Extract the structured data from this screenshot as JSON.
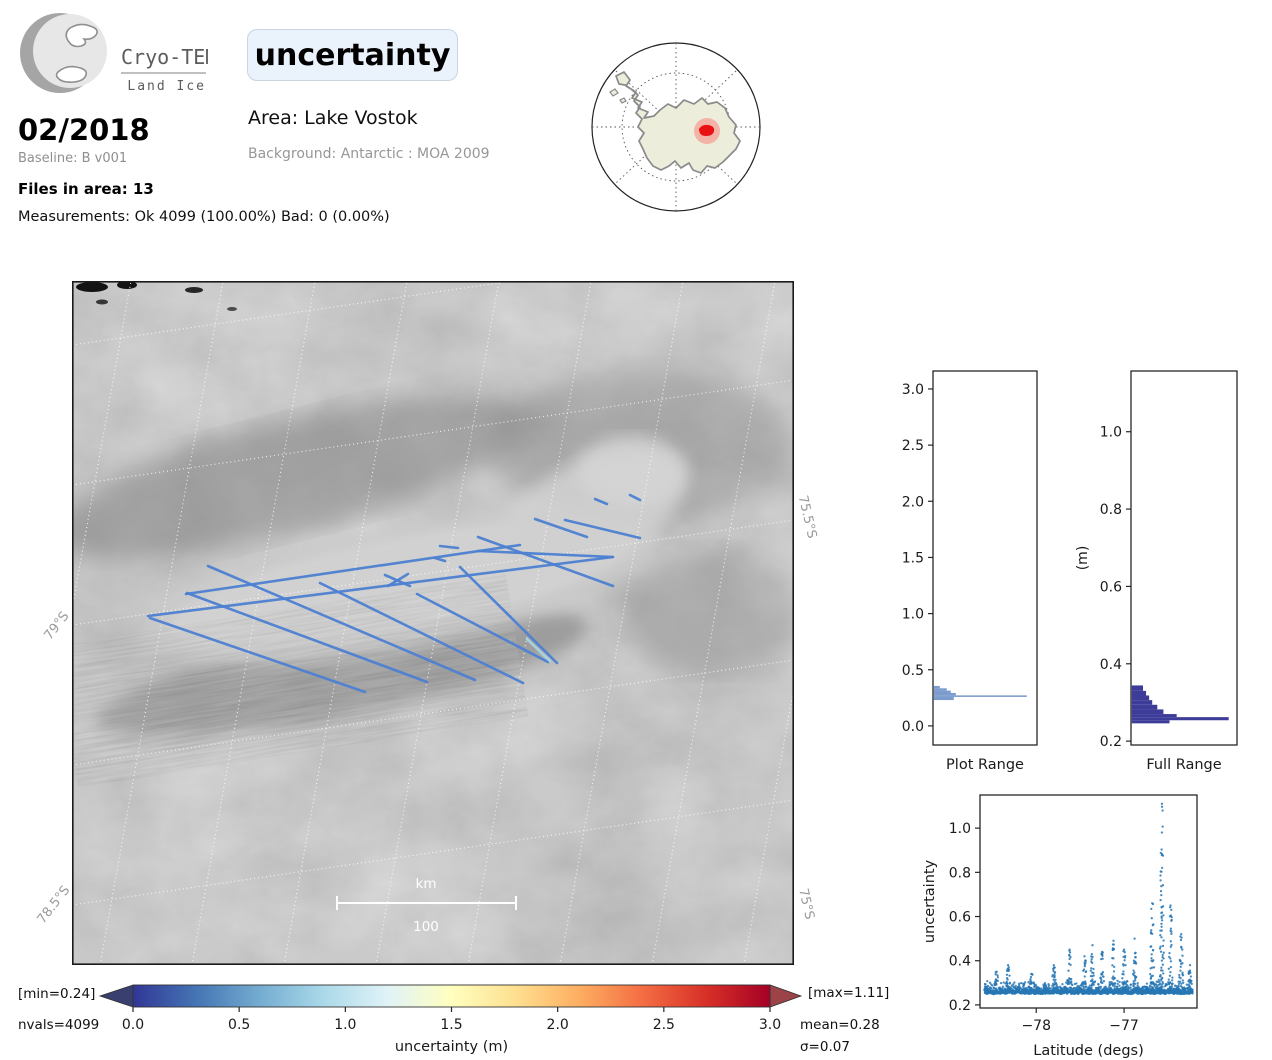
{
  "header": {
    "logo": {
      "line1": "Cryo-TEMPO",
      "line2": "Land Ice"
    },
    "title": "uncertainty",
    "date": "02/2018",
    "baseline": "Baseline: B v001",
    "files": "Files in area: 13",
    "measurements": "Measurements: Ok 4099 (100.00%) Bad: 0 (0.00%)",
    "area": "Area: Lake Vostok",
    "background": "Background: Antarctic : MOA 2009"
  },
  "map": {
    "labels": [
      "79°S",
      "78.5°S",
      "75.5°S",
      "75°S"
    ],
    "scalebar": {
      "unit": "km",
      "value": "100"
    },
    "track_color": "#4d80d2",
    "tracks": [
      [
        78,
        337,
        293,
        411
      ],
      [
        115,
        312,
        355,
        401
      ],
      [
        136,
        285,
        403,
        399
      ],
      [
        248,
        302,
        451,
        402
      ],
      [
        345,
        313,
        476,
        381
      ],
      [
        388,
        286,
        485,
        382
      ],
      [
        406,
        256,
        541,
        305
      ],
      [
        406,
        270,
        541,
        276
      ],
      [
        76,
        335,
        541,
        276
      ],
      [
        114,
        313,
        448,
        264
      ],
      [
        463,
        238,
        515,
        256
      ],
      [
        523,
        218,
        535,
        223
      ],
      [
        368,
        265,
        386,
        267
      ],
      [
        363,
        277,
        373,
        280
      ],
      [
        313,
        294,
        338,
        305
      ],
      [
        316,
        305,
        336,
        293
      ],
      [
        493,
        239,
        568,
        257
      ],
      [
        558,
        214,
        568,
        219
      ]
    ],
    "light_tracks": [
      [
        455,
        358,
        478,
        380
      ]
    ],
    "light_track_color": "#a6d8e6"
  },
  "colorbar": {
    "min_label": "[min=0.24]",
    "nvals_label": "nvals=4099",
    "max_label": "[max=1.11]",
    "mean_label": "mean=0.28",
    "sigma_label": "σ=0.07",
    "axis_label": "uncertainty (m)",
    "ticks": [
      "0.0",
      "0.5",
      "1.0",
      "1.5",
      "2.0",
      "2.5",
      "3.0"
    ],
    "gradient": [
      "#313695",
      "#4575b4",
      "#74add1",
      "#abd9e9",
      "#e0f3f8",
      "#ffffbf",
      "#fee090",
      "#fdae61",
      "#f46d43",
      "#d73027",
      "#a50026"
    ],
    "under_color": "#39406f",
    "over_color": "#9b4347"
  },
  "chart_data": [
    {
      "id": "plot_range",
      "type": "bar",
      "orientation": "horizontal",
      "title": "Plot Range",
      "ylim": [
        -0.17,
        3.16
      ],
      "yticks": [
        {
          "v": 0.0,
          "label": "0.0"
        },
        {
          "v": 0.5,
          "label": "0.5"
        },
        {
          "v": 1.0,
          "label": "1.0"
        },
        {
          "v": 1.5,
          "label": "1.5"
        },
        {
          "v": 2.0,
          "label": "2.0"
        },
        {
          "v": 2.5,
          "label": "2.5"
        },
        {
          "v": 3.0,
          "label": "3.0"
        }
      ],
      "color": "#7b9ccd",
      "bins": [
        {
          "from": 0.335,
          "to": 0.356,
          "frac": 0.06
        },
        {
          "from": 0.314,
          "to": 0.335,
          "frac": 0.13
        },
        {
          "from": 0.293,
          "to": 0.314,
          "frac": 0.17
        },
        {
          "from": 0.272,
          "to": 0.293,
          "frac": 0.22
        },
        {
          "from": 0.258,
          "to": 0.272,
          "frac": 0.93
        },
        {
          "from": 0.23,
          "to": 0.258,
          "frac": 0.2
        }
      ]
    },
    {
      "id": "full_range",
      "type": "bar",
      "orientation": "horizontal",
      "title": "Full Range",
      "ylabel": "(m)",
      "ylim": [
        0.19,
        1.157
      ],
      "yticks": [
        {
          "v": 0.2,
          "label": "0.2"
        },
        {
          "v": 0.4,
          "label": "0.4"
        },
        {
          "v": 0.6,
          "label": "0.6"
        },
        {
          "v": 0.8,
          "label": "0.8"
        },
        {
          "v": 1.0,
          "label": "1.0"
        }
      ],
      "color": "#3d3c99",
      "bins": [
        {
          "from": 0.33,
          "to": 0.344,
          "frac": 0.11
        },
        {
          "from": 0.318,
          "to": 0.33,
          "frac": 0.14
        },
        {
          "from": 0.306,
          "to": 0.318,
          "frac": 0.17
        },
        {
          "from": 0.294,
          "to": 0.306,
          "frac": 0.2
        },
        {
          "from": 0.282,
          "to": 0.294,
          "frac": 0.25
        },
        {
          "from": 0.27,
          "to": 0.282,
          "frac": 0.31
        },
        {
          "from": 0.262,
          "to": 0.27,
          "frac": 0.44
        },
        {
          "from": 0.254,
          "to": 0.262,
          "frac": 0.95
        },
        {
          "from": 0.246,
          "to": 0.254,
          "frac": 0.37
        }
      ]
    },
    {
      "id": "lat_scatter",
      "type": "scatter",
      "xlabel": "Latitude (degs)",
      "ylabel": "uncertainty",
      "xlim": [
        -78.64,
        -76.17
      ],
      "ylim": [
        0.186,
        1.15
      ],
      "xticks": [
        {
          "v": -78,
          "label": "−78"
        },
        {
          "v": -77,
          "label": "−77"
        }
      ],
      "yticks": [
        {
          "v": 0.2,
          "label": "0.2"
        },
        {
          "v": 0.4,
          "label": "0.4"
        },
        {
          "v": 0.6,
          "label": "0.6"
        },
        {
          "v": 0.8,
          "label": "0.8"
        },
        {
          "v": 1.0,
          "label": "1.0"
        }
      ],
      "color": "#2777b4",
      "n_points": 4099,
      "baseline_band": [
        0.24,
        0.34
      ],
      "spikes": [
        {
          "x": -78.45,
          "peak": 0.35
        },
        {
          "x": -78.32,
          "peak": 0.38
        },
        {
          "x": -78.05,
          "peak": 0.34
        },
        {
          "x": -77.8,
          "peak": 0.38
        },
        {
          "x": -77.62,
          "peak": 0.45
        },
        {
          "x": -77.45,
          "peak": 0.42
        },
        {
          "x": -77.36,
          "peak": 0.47
        },
        {
          "x": -77.25,
          "peak": 0.44
        },
        {
          "x": -77.12,
          "peak": 0.49
        },
        {
          "x": -77.0,
          "peak": 0.45
        },
        {
          "x": -76.88,
          "peak": 0.5
        },
        {
          "x": -76.68,
          "peak": 0.66
        },
        {
          "x": -76.57,
          "peak": 1.11
        },
        {
          "x": -76.47,
          "peak": 0.65
        },
        {
          "x": -76.35,
          "peak": 0.52
        },
        {
          "x": -76.25,
          "peak": 0.38
        }
      ]
    }
  ]
}
